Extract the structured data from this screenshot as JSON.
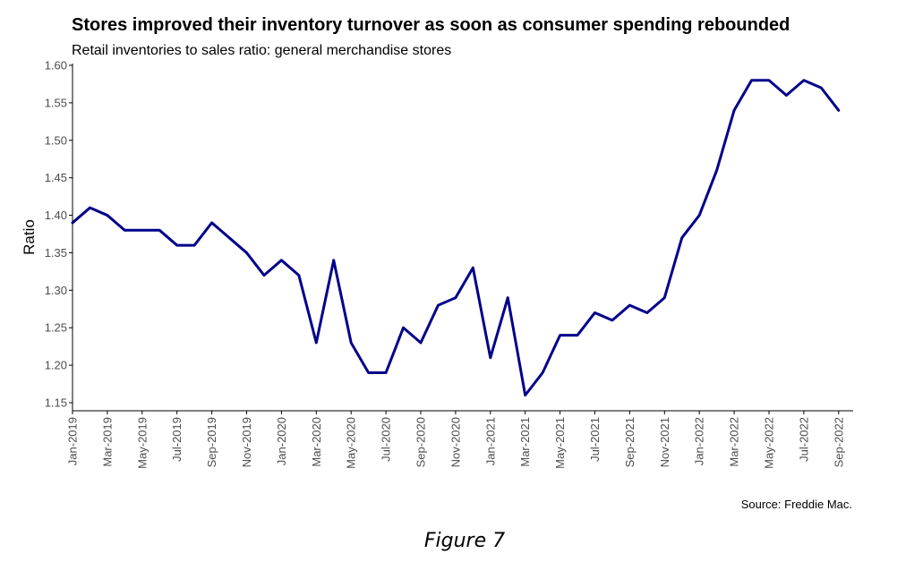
{
  "figure_caption": "Figure 7",
  "source": "Source: Freddie Mac.",
  "colors": {
    "line": "#00008b",
    "axis": "#000000",
    "tick_label": "#4d4d4d"
  },
  "chart_data": {
    "type": "line",
    "title": "Stores improved their inventory turnover as soon as consumer spending rebounded",
    "subtitle": "Retail inventories to sales ratio: general merchandise stores",
    "xlabel": "",
    "ylabel": "Ratio",
    "ylim": [
      1.14,
      1.6
    ],
    "yticks": [
      1.15,
      1.2,
      1.25,
      1.3,
      1.35,
      1.4,
      1.45,
      1.5,
      1.55,
      1.6
    ],
    "ytick_labels": [
      "1.15",
      "1.20",
      "1.25",
      "1.30",
      "1.35",
      "1.40",
      "1.45",
      "1.50",
      "1.55",
      "1.60"
    ],
    "xtick_labels": [
      "Jan-2019",
      "Mar-2019",
      "May-2019",
      "Jul-2019",
      "Sep-2019",
      "Nov-2019",
      "Jan-2020",
      "Mar-2020",
      "May-2020",
      "Jul-2020",
      "Sep-2020",
      "Nov-2020",
      "Jan-2021",
      "Mar-2021",
      "May-2021",
      "Jul-2021",
      "Sep-2021",
      "Nov-2021",
      "Jan-2022",
      "Mar-2022",
      "May-2022",
      "Jul-2022",
      "Sep-2022"
    ],
    "grid": false,
    "legend": "none",
    "x": [
      "Jan-2019",
      "Feb-2019",
      "Mar-2019",
      "Apr-2019",
      "May-2019",
      "Jun-2019",
      "Jul-2019",
      "Aug-2019",
      "Sep-2019",
      "Oct-2019",
      "Nov-2019",
      "Dec-2019",
      "Jan-2020",
      "Feb-2020",
      "Mar-2020",
      "Apr-2020",
      "May-2020",
      "Jun-2020",
      "Jul-2020",
      "Aug-2020",
      "Sep-2020",
      "Oct-2020",
      "Nov-2020",
      "Dec-2020",
      "Jan-2021",
      "Feb-2021",
      "Mar-2021",
      "Apr-2021",
      "May-2021",
      "Jun-2021",
      "Jul-2021",
      "Aug-2021",
      "Sep-2021",
      "Oct-2021",
      "Nov-2021",
      "Dec-2021",
      "Jan-2022",
      "Feb-2022",
      "Mar-2022",
      "Apr-2022",
      "May-2022",
      "Jun-2022",
      "Jul-2022",
      "Aug-2022",
      "Sep-2022"
    ],
    "series": [
      {
        "values": [
          1.39,
          1.41,
          1.4,
          1.38,
          1.38,
          1.38,
          1.36,
          1.36,
          1.39,
          1.37,
          1.35,
          1.32,
          1.34,
          1.32,
          1.23,
          1.34,
          1.23,
          1.19,
          1.19,
          1.25,
          1.23,
          1.28,
          1.29,
          1.33,
          1.21,
          1.29,
          1.16,
          1.19,
          1.24,
          1.24,
          1.27,
          1.26,
          1.28,
          1.27,
          1.29,
          1.37,
          1.4,
          1.46,
          1.54,
          1.58,
          1.58,
          1.56,
          1.58,
          1.57,
          1.54
        ]
      }
    ]
  }
}
